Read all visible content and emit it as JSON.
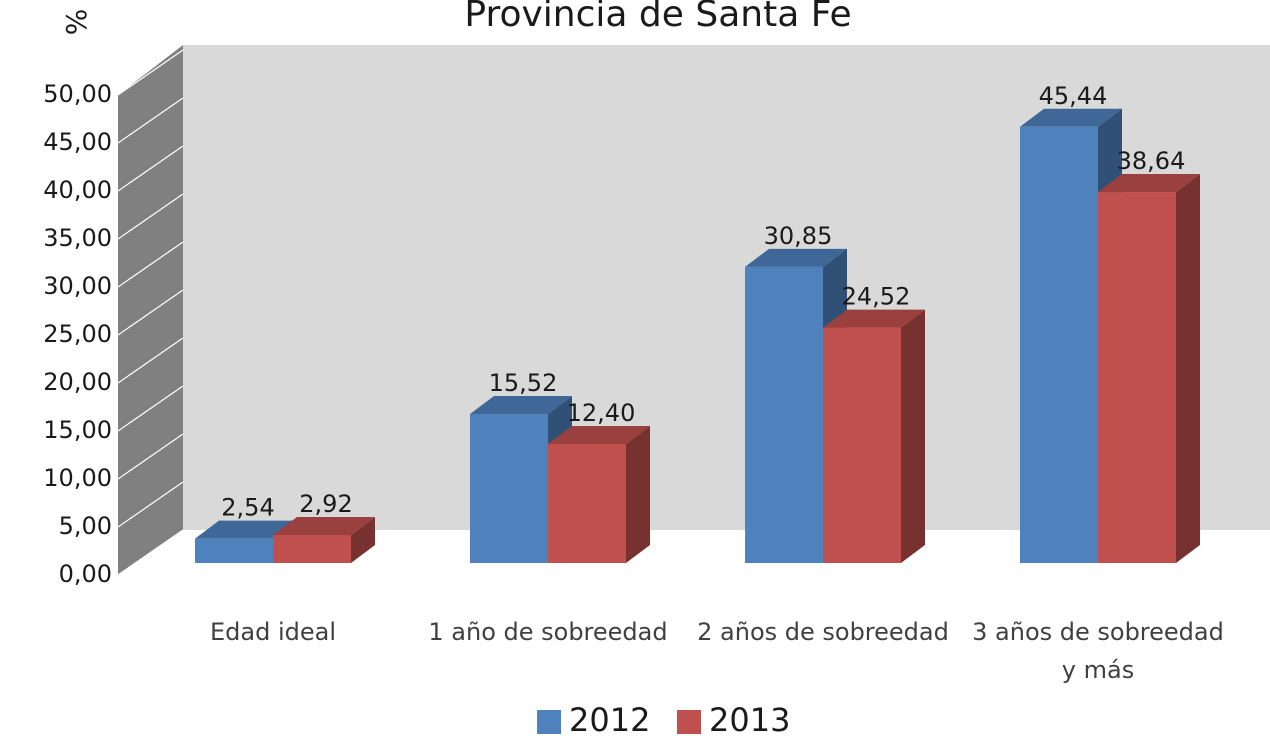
{
  "chart_data": {
    "type": "bar3d",
    "title": "Provincia de Santa Fe",
    "y_label": "%",
    "categories": [
      "Edad ideal",
      "1 año de sobreedad",
      "2 años de sobreedad",
      "3 años de sobreedad y más"
    ],
    "series": [
      {
        "name": "2012",
        "color": "#4f81bd",
        "values": [
          2.54,
          15.52,
          30.85,
          45.44
        ],
        "value_labels": [
          "2,54",
          "15,52",
          "30,85",
          "45,44"
        ]
      },
      {
        "name": "2013",
        "color": "#c0504d",
        "values": [
          2.92,
          12.4,
          24.52,
          38.64
        ],
        "value_labels": [
          "2,92",
          "12,40",
          "24,52",
          "38,64"
        ]
      }
    ],
    "ylim": [
      0,
      50
    ],
    "yticks": [
      {
        "value": 0,
        "label": "0,00"
      },
      {
        "value": 5,
        "label": "5,00"
      },
      {
        "value": 10,
        "label": "10,00"
      },
      {
        "value": 15,
        "label": "15,00"
      },
      {
        "value": 20,
        "label": "20,00"
      },
      {
        "value": 25,
        "label": "25,00"
      },
      {
        "value": 30,
        "label": "30,00"
      },
      {
        "value": 35,
        "label": "35,00"
      },
      {
        "value": 40,
        "label": "40,00"
      },
      {
        "value": 45,
        "label": "45,00"
      },
      {
        "value": 50,
        "label": "50,00"
      }
    ],
    "grid": true,
    "legend": "bottom"
  }
}
